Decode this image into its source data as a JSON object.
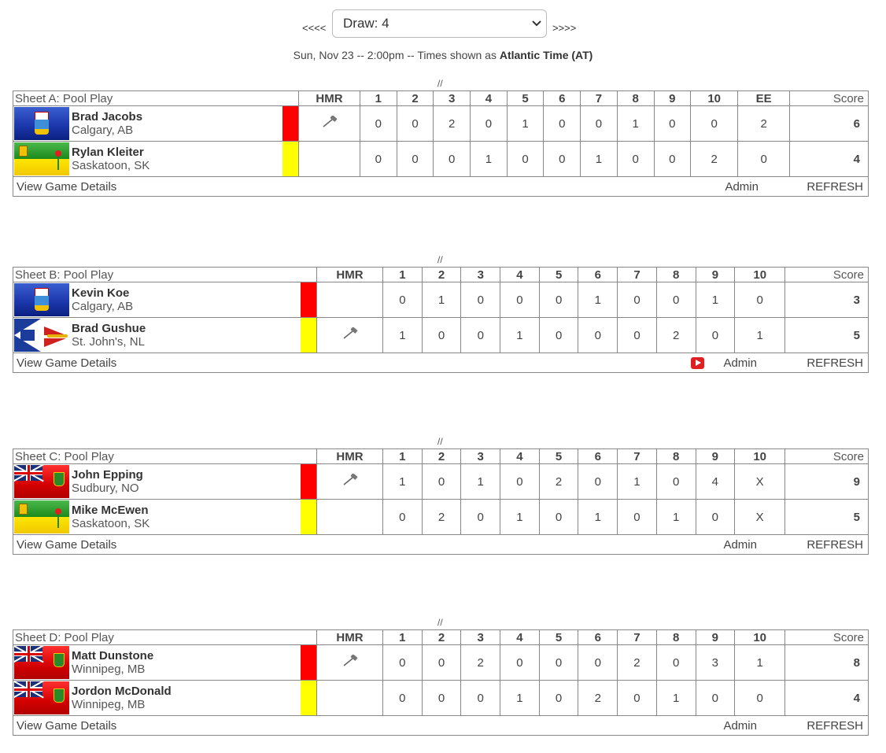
{
  "nav": {
    "prev": "<<<<",
    "next": ">>>>",
    "draw_select": "Draw: 4",
    "date_text": "Sun, Nov 23 -- 2:00pm -- Times shown as ",
    "timezone": "Atlantic Time (AT)"
  },
  "separator": "//",
  "hmr_label": "HMR",
  "score_label": "Score",
  "view_details": "View Game Details",
  "admin": "Admin",
  "refresh": "REFRESH",
  "colors": {
    "red_stone": "#ff0000",
    "yellow_stone": "#ffff00"
  },
  "games": [
    {
      "title": "Sheet A: Pool Play",
      "ends": [
        "1",
        "2",
        "3",
        "4",
        "5",
        "6",
        "7",
        "8",
        "9",
        "10",
        "EE"
      ],
      "teams": [
        {
          "name": "Brad Jacobs",
          "city": "Calgary, AB",
          "flag": "alberta-flag",
          "stone": "red",
          "hammer": true,
          "ends": [
            "0",
            "0",
            "2",
            "0",
            "1",
            "0",
            "0",
            "1",
            "0",
            "0",
            "2"
          ],
          "total": "6"
        },
        {
          "name": "Rylan Kleiter",
          "city": "Saskatoon, SK",
          "flag": "saskatchewan-flag",
          "stone": "yellow",
          "hammer": false,
          "ends": [
            "0",
            "0",
            "0",
            "1",
            "0",
            "0",
            "1",
            "0",
            "0",
            "2",
            "0"
          ],
          "total": "4"
        }
      ],
      "video": false
    },
    {
      "title": "Sheet B: Pool Play",
      "ends": [
        "1",
        "2",
        "3",
        "4",
        "5",
        "6",
        "7",
        "8",
        "9",
        "10"
      ],
      "teams": [
        {
          "name": "Kevin Koe",
          "city": "Calgary, AB",
          "flag": "alberta-flag",
          "stone": "red",
          "hammer": false,
          "ends": [
            "0",
            "1",
            "0",
            "0",
            "0",
            "1",
            "0",
            "0",
            "1",
            "0"
          ],
          "total": "3"
        },
        {
          "name": "Brad Gushue",
          "city": "St. John's, NL",
          "flag": "newfoundland-flag",
          "stone": "yellow",
          "hammer": true,
          "ends": [
            "1",
            "0",
            "0",
            "1",
            "0",
            "0",
            "0",
            "2",
            "0",
            "1"
          ],
          "total": "5"
        }
      ],
      "video": true
    },
    {
      "title": "Sheet C: Pool Play",
      "ends": [
        "1",
        "2",
        "3",
        "4",
        "5",
        "6",
        "7",
        "8",
        "9",
        "10"
      ],
      "teams": [
        {
          "name": "John Epping",
          "city": "Sudbury, NO",
          "flag": "ontario-flag",
          "stone": "red",
          "hammer": true,
          "ends": [
            "1",
            "0",
            "1",
            "0",
            "2",
            "0",
            "1",
            "0",
            "4",
            "X"
          ],
          "total": "9"
        },
        {
          "name": "Mike McEwen",
          "city": "Saskatoon, SK",
          "flag": "saskatchewan-flag",
          "stone": "yellow",
          "hammer": false,
          "ends": [
            "0",
            "2",
            "0",
            "1",
            "0",
            "1",
            "0",
            "1",
            "0",
            "X"
          ],
          "total": "5"
        }
      ],
      "video": false
    },
    {
      "title": "Sheet D: Pool Play",
      "ends": [
        "1",
        "2",
        "3",
        "4",
        "5",
        "6",
        "7",
        "8",
        "9",
        "10"
      ],
      "teams": [
        {
          "name": "Matt Dunstone",
          "city": "Winnipeg, MB",
          "flag": "manitoba-flag",
          "stone": "red",
          "hammer": true,
          "ends": [
            "0",
            "0",
            "2",
            "0",
            "0",
            "0",
            "2",
            "0",
            "3",
            "1"
          ],
          "total": "8"
        },
        {
          "name": "Jordon McDonald",
          "city": "Winnipeg, MB",
          "flag": "manitoba-flag",
          "stone": "yellow",
          "hammer": false,
          "ends": [
            "0",
            "0",
            "0",
            "1",
            "0",
            "2",
            "0",
            "1",
            "0",
            "0"
          ],
          "total": "4"
        }
      ],
      "video": false
    }
  ]
}
